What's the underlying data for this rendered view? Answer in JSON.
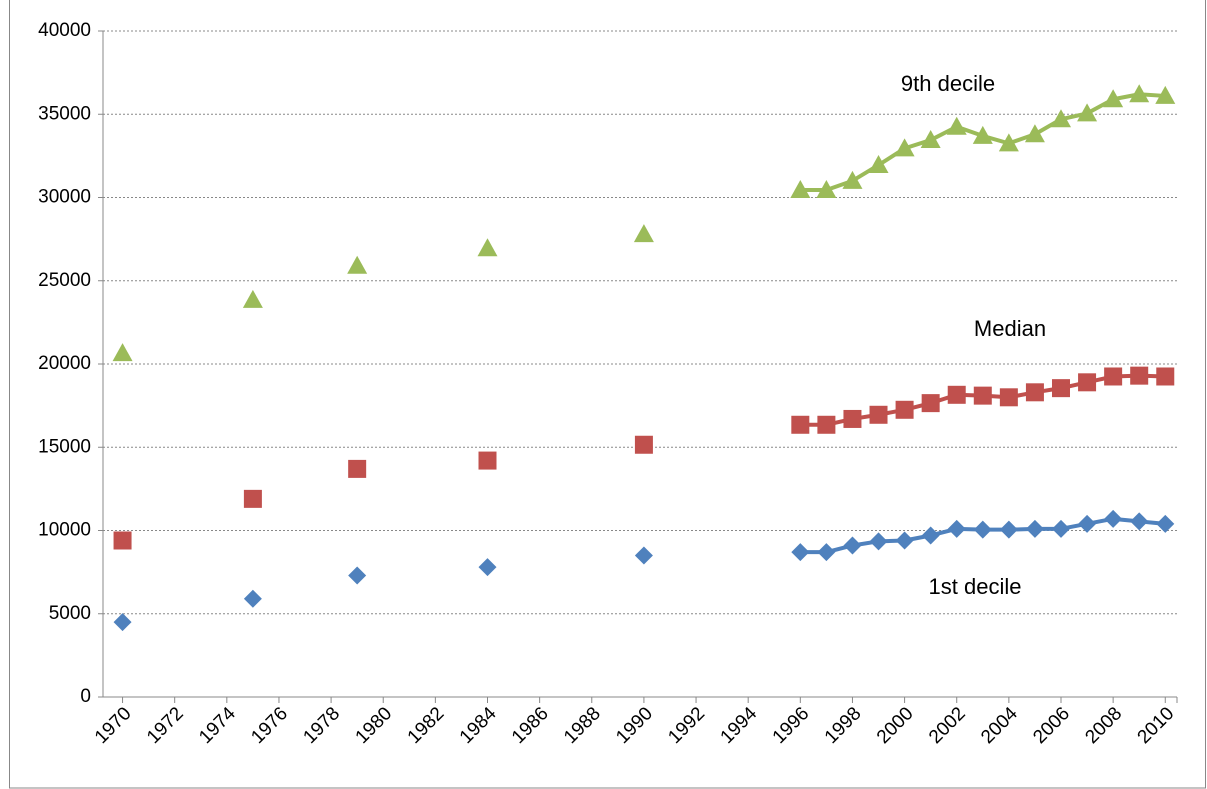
{
  "chart_data": {
    "type": "line",
    "x": [
      1970,
      1971,
      1972,
      1973,
      1974,
      1975,
      1976,
      1977,
      1978,
      1979,
      1980,
      1981,
      1982,
      1983,
      1984,
      1985,
      1986,
      1987,
      1988,
      1989,
      1990,
      1991,
      1992,
      1993,
      1994,
      1995,
      1996,
      1997,
      1998,
      1999,
      2000,
      2001,
      2002,
      2003,
      2004,
      2005,
      2006,
      2007,
      2008,
      2009,
      2010
    ],
    "series": [
      {
        "name": "1st decile",
        "color": "#4f81bd",
        "marker": "diamond",
        "values": [
          4500,
          null,
          null,
          null,
          null,
          5900,
          null,
          null,
          null,
          7300,
          null,
          null,
          null,
          null,
          7800,
          null,
          null,
          null,
          null,
          null,
          8500,
          null,
          null,
          null,
          null,
          null,
          8700,
          8700,
          9100,
          9350,
          9400,
          9700,
          10100,
          10050,
          10050,
          10100,
          10100,
          10400,
          10700,
          10550,
          10400
        ]
      },
      {
        "name": "Median",
        "color": "#c0504d",
        "marker": "square",
        "values": [
          9400,
          null,
          null,
          null,
          null,
          11900,
          null,
          null,
          null,
          13700,
          null,
          null,
          null,
          null,
          14200,
          null,
          null,
          null,
          null,
          null,
          15150,
          null,
          null,
          null,
          null,
          null,
          16350,
          16350,
          16700,
          16950,
          17250,
          17650,
          18150,
          18100,
          18000,
          18300,
          18550,
          18900,
          19250,
          19300,
          19250
        ]
      },
      {
        "name": "9th decile",
        "color": "#9bbb59",
        "marker": "triangle",
        "values": [
          20650,
          null,
          null,
          null,
          null,
          23850,
          null,
          null,
          null,
          25900,
          null,
          null,
          null,
          null,
          26950,
          null,
          null,
          null,
          null,
          null,
          27800,
          null,
          null,
          null,
          null,
          null,
          30450,
          30450,
          31000,
          31950,
          32950,
          33450,
          34250,
          33700,
          33250,
          33800,
          34700,
          35050,
          35900,
          36200,
          36100
        ]
      }
    ],
    "xlim": [
      1969.25,
      2010.45
    ],
    "xticks": [
      1970,
      1972,
      1974,
      1976,
      1978,
      1980,
      1982,
      1984,
      1986,
      1988,
      1990,
      1992,
      1994,
      1996,
      1998,
      2000,
      2002,
      2004,
      2006,
      2008,
      2010
    ],
    "ylim": [
      0,
      40000
    ],
    "yticks": [
      0,
      5000,
      10000,
      15000,
      20000,
      25000,
      30000,
      35000,
      40000
    ],
    "grid": true
  }
}
